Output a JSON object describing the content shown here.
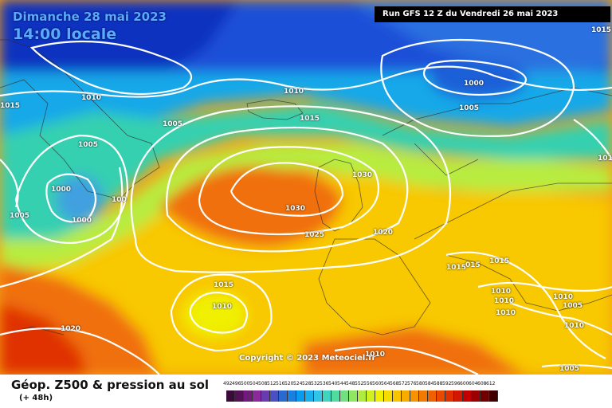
{
  "header": {
    "date": "Dimanche 28 mai 2023",
    "time": "14:00 locale",
    "run": "Run GFS 12 Z du Vendredi 26 mai 2023"
  },
  "copyright": "Copyright © 2023 Meteociel.fr",
  "legend": {
    "title": "Géop. Z500 & pression au sol",
    "subtitle": "(+ 48h)",
    "ticks": [
      "492",
      "496",
      "500",
      "504",
      "508",
      "512",
      "516",
      "520",
      "524",
      "528",
      "532",
      "536",
      "540",
      "544",
      "548",
      "552",
      "556",
      "560",
      "564",
      "568",
      "572",
      "576",
      "580",
      "584",
      "588",
      "592",
      "596",
      "600",
      "604",
      "608",
      "612"
    ],
    "colors": [
      "#3a0a3a",
      "#55105a",
      "#701a7a",
      "#8a2a9a",
      "#6a3ab0",
      "#4a50c0",
      "#2a6ad0",
      "#1a80e0",
      "#0a9aee",
      "#1ab0f0",
      "#30c4e6",
      "#40d4c0",
      "#50dca0",
      "#70e080",
      "#90e660",
      "#b0ec40",
      "#d0f020",
      "#f0f000",
      "#f6dc00",
      "#f8c400",
      "#f8ac00",
      "#f69400",
      "#f27a00",
      "#ee6000",
      "#e84800",
      "#e03000",
      "#d41800",
      "#c00000",
      "#9a0000",
      "#700000",
      "#400000"
    ]
  },
  "isobar_labels": [
    {
      "text": "1010",
      "pos": [
        102,
        118
      ]
    },
    {
      "text": "1005",
      "pos": [
        204,
        151
      ]
    },
    {
      "text": "1015",
      "pos": [
        0,
        128
      ]
    },
    {
      "text": "1005",
      "pos": [
        98,
        177
      ]
    },
    {
      "text": "1000",
      "pos": [
        64,
        233
      ]
    },
    {
      "text": "1000",
      "pos": [
        90,
        272
      ]
    },
    {
      "text": "100",
      "pos": [
        140,
        246
      ]
    },
    {
      "text": "1005",
      "pos": [
        12,
        266
      ]
    },
    {
      "text": "1010",
      "pos": [
        356,
        110
      ]
    },
    {
      "text": "1015",
      "pos": [
        376,
        144
      ]
    },
    {
      "text": "1030",
      "pos": [
        442,
        215
      ]
    },
    {
      "text": "1030",
      "pos": [
        358,
        257
      ]
    },
    {
      "text": "1025",
      "pos": [
        382,
        290
      ]
    },
    {
      "text": "1020",
      "pos": [
        468,
        287
      ]
    },
    {
      "text": "1000",
      "pos": [
        582,
        100
      ]
    },
    {
      "text": "1005",
      "pos": [
        576,
        131
      ]
    },
    {
      "text": "1015",
      "pos": [
        742,
        33
      ]
    },
    {
      "text": "101",
      "pos": [
        750,
        194
      ]
    },
    {
      "text": "1015",
      "pos": [
        560,
        331
      ]
    },
    {
      "text": "015",
      "pos": [
        584,
        328
      ]
    },
    {
      "text": "1015",
      "pos": [
        614,
        323
      ]
    },
    {
      "text": "1015",
      "pos": [
        268,
        353
      ]
    },
    {
      "text": "1010",
      "pos": [
        266,
        380
      ]
    },
    {
      "text": "1020",
      "pos": [
        76,
        408
      ]
    },
    {
      "text": "1010",
      "pos": [
        616,
        361
      ]
    },
    {
      "text": "1010",
      "pos": [
        620,
        373
      ]
    },
    {
      "text": "1010",
      "pos": [
        622,
        388
      ]
    },
    {
      "text": "1010",
      "pos": [
        694,
        368
      ]
    },
    {
      "text": "1005",
      "pos": [
        706,
        379
      ]
    },
    {
      "text": "1010",
      "pos": [
        708,
        404
      ]
    },
    {
      "text": "1010",
      "pos": [
        458,
        440
      ]
    },
    {
      "text": "1005",
      "pos": [
        702,
        458
      ]
    }
  ]
}
